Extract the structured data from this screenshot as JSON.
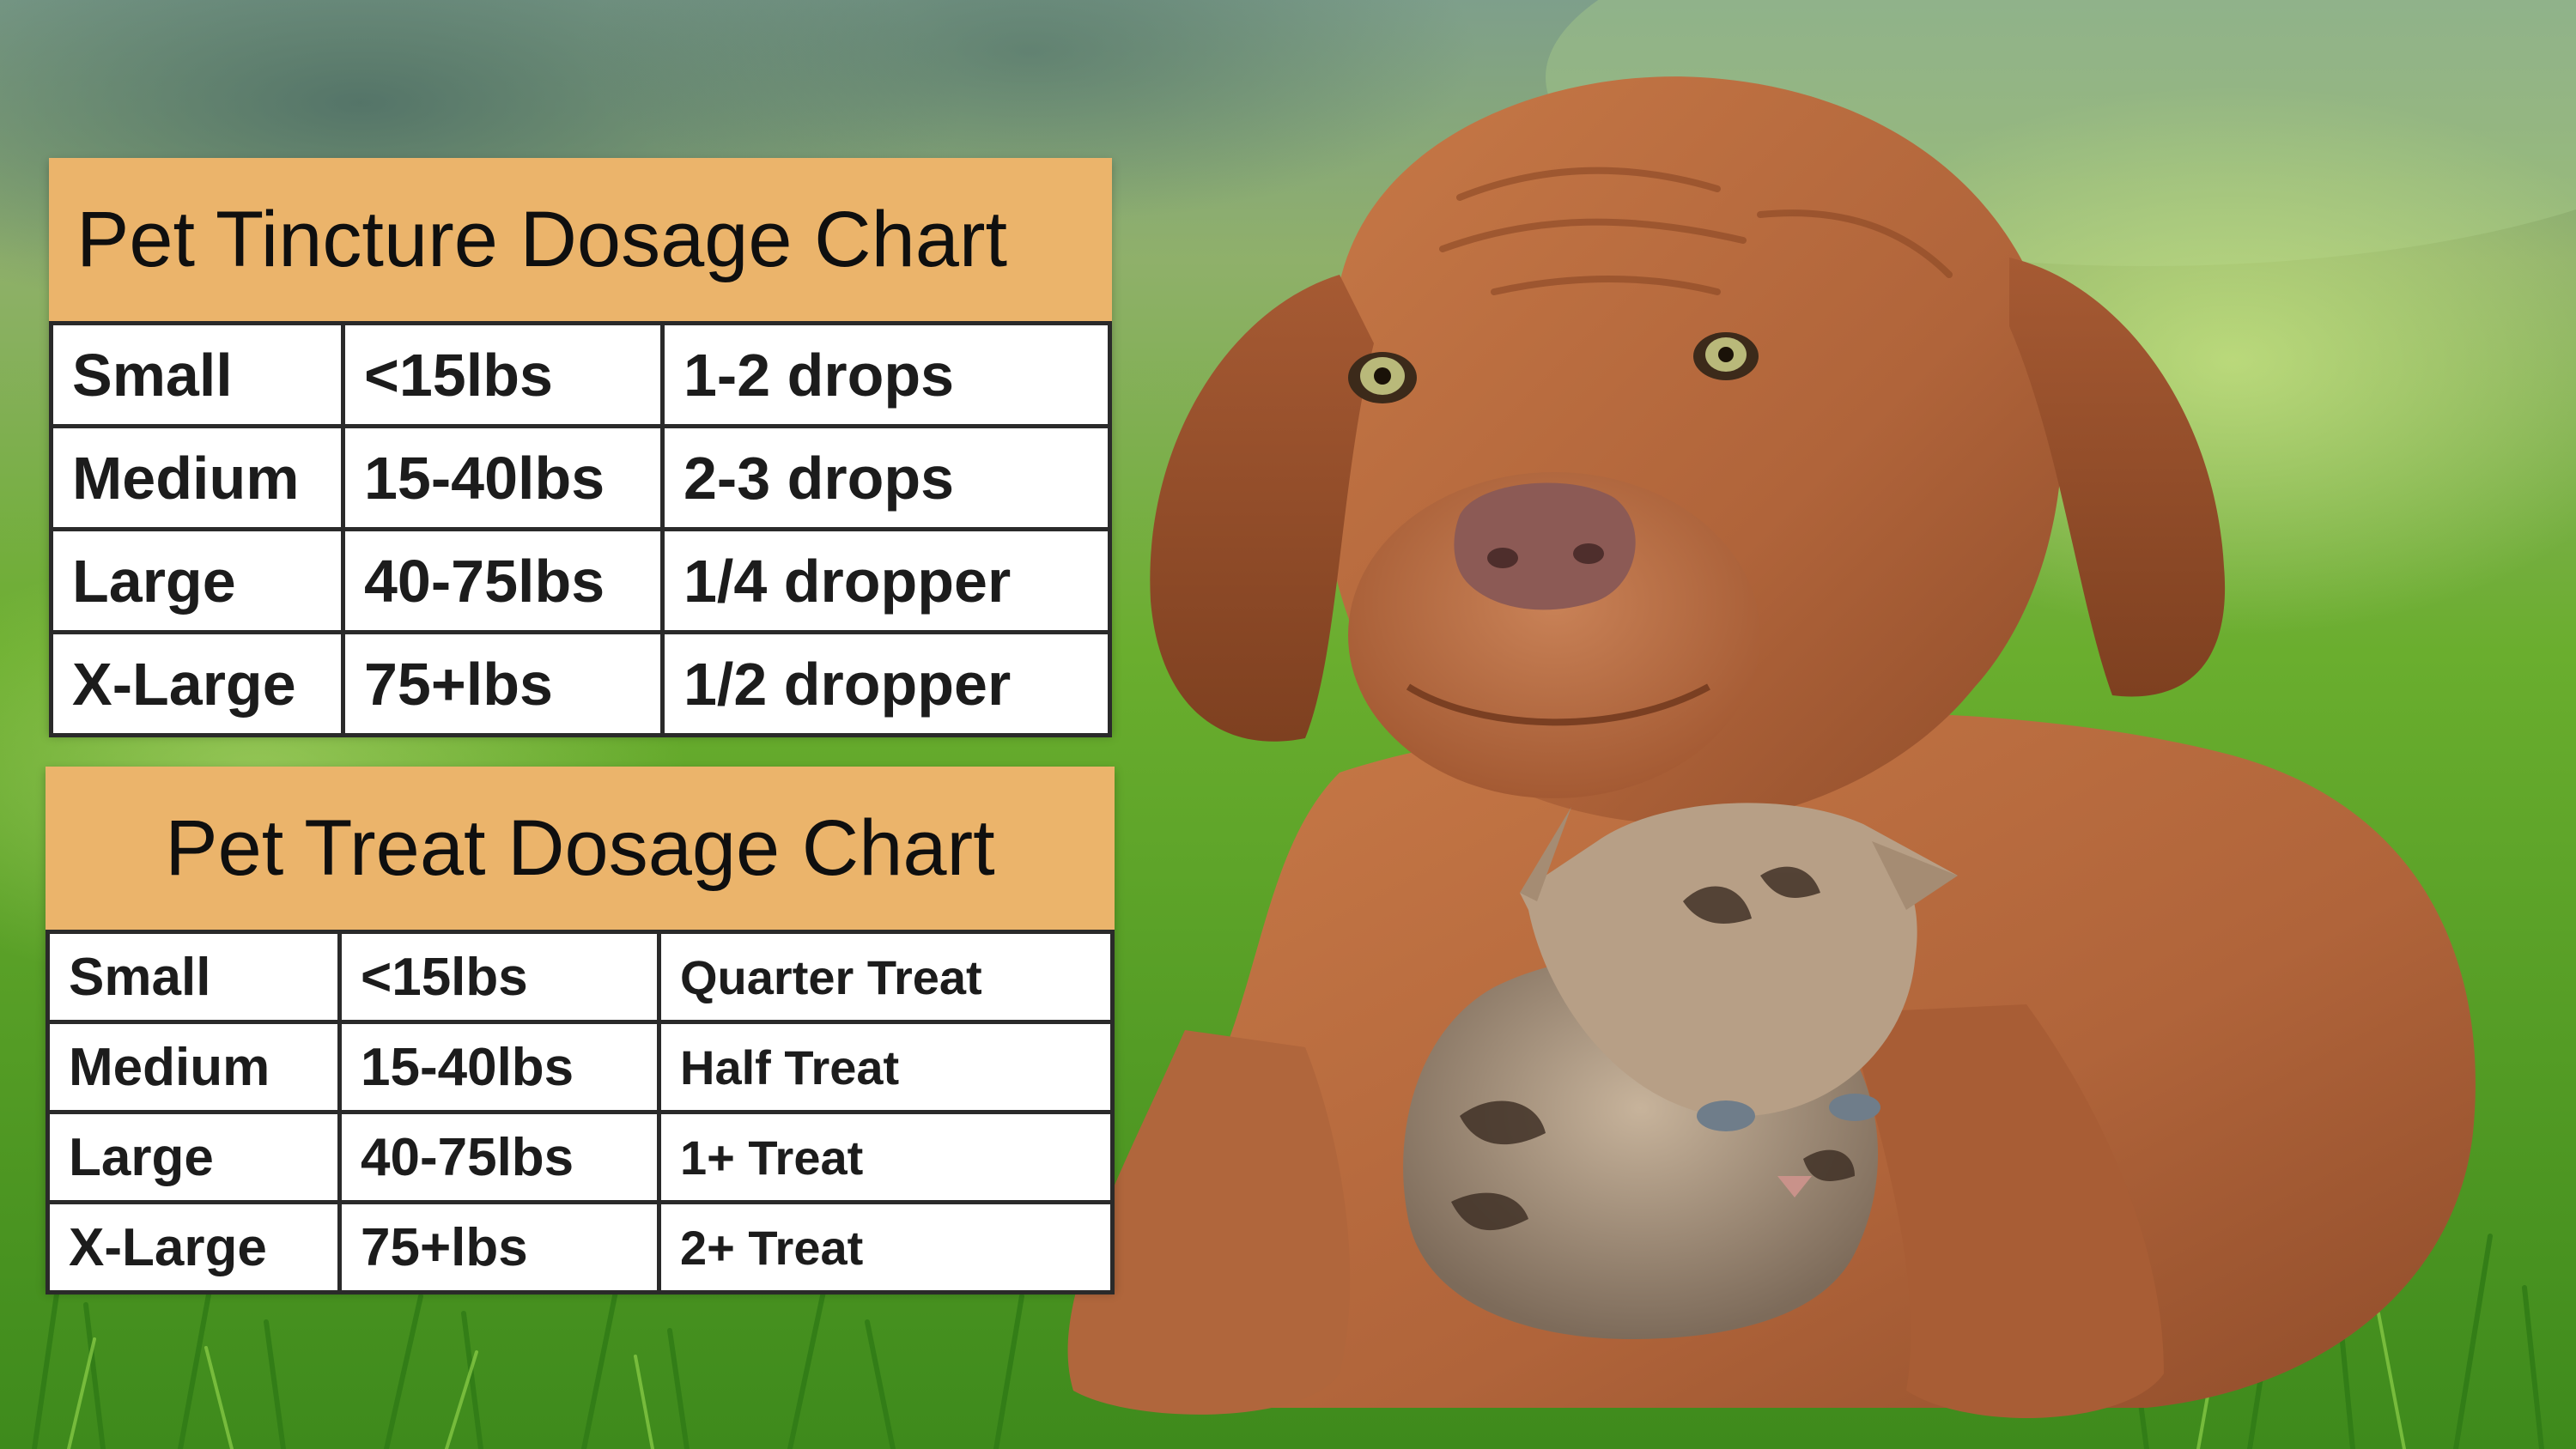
{
  "tincture_chart": {
    "title": "Pet Tincture Dosage Chart",
    "rows": [
      {
        "size": "Small",
        "weight": "<15lbs",
        "dose": "1-2 drops"
      },
      {
        "size": "Medium",
        "weight": "15-40lbs",
        "dose": "2-3 drops"
      },
      {
        "size": "Large",
        "weight": "40-75lbs",
        "dose": "1/4 dropper"
      },
      {
        "size": "X-Large",
        "weight": "75+lbs",
        "dose": "1/2 dropper"
      }
    ]
  },
  "treat_chart": {
    "title": "Pet Treat Dosage Chart",
    "rows": [
      {
        "size": "Small",
        "weight": "<15lbs",
        "dose": "Quarter Treat"
      },
      {
        "size": "Medium",
        "weight": "15-40lbs",
        "dose": "Half Treat"
      },
      {
        "size": "Large",
        "weight": "40-75lbs",
        "dose": "1+ Treat"
      },
      {
        "size": "X-Large",
        "weight": "75+lbs",
        "dose": "2+ Treat"
      }
    ]
  },
  "colors": {
    "header_orange": "#ebb46b",
    "grass_green": "#5fa02e",
    "dog_coat": "#b8673c",
    "kitten_coat": "#9c8a78"
  },
  "photo": {
    "subjects": [
      "puppy-icon",
      "kitten-icon"
    ]
  }
}
